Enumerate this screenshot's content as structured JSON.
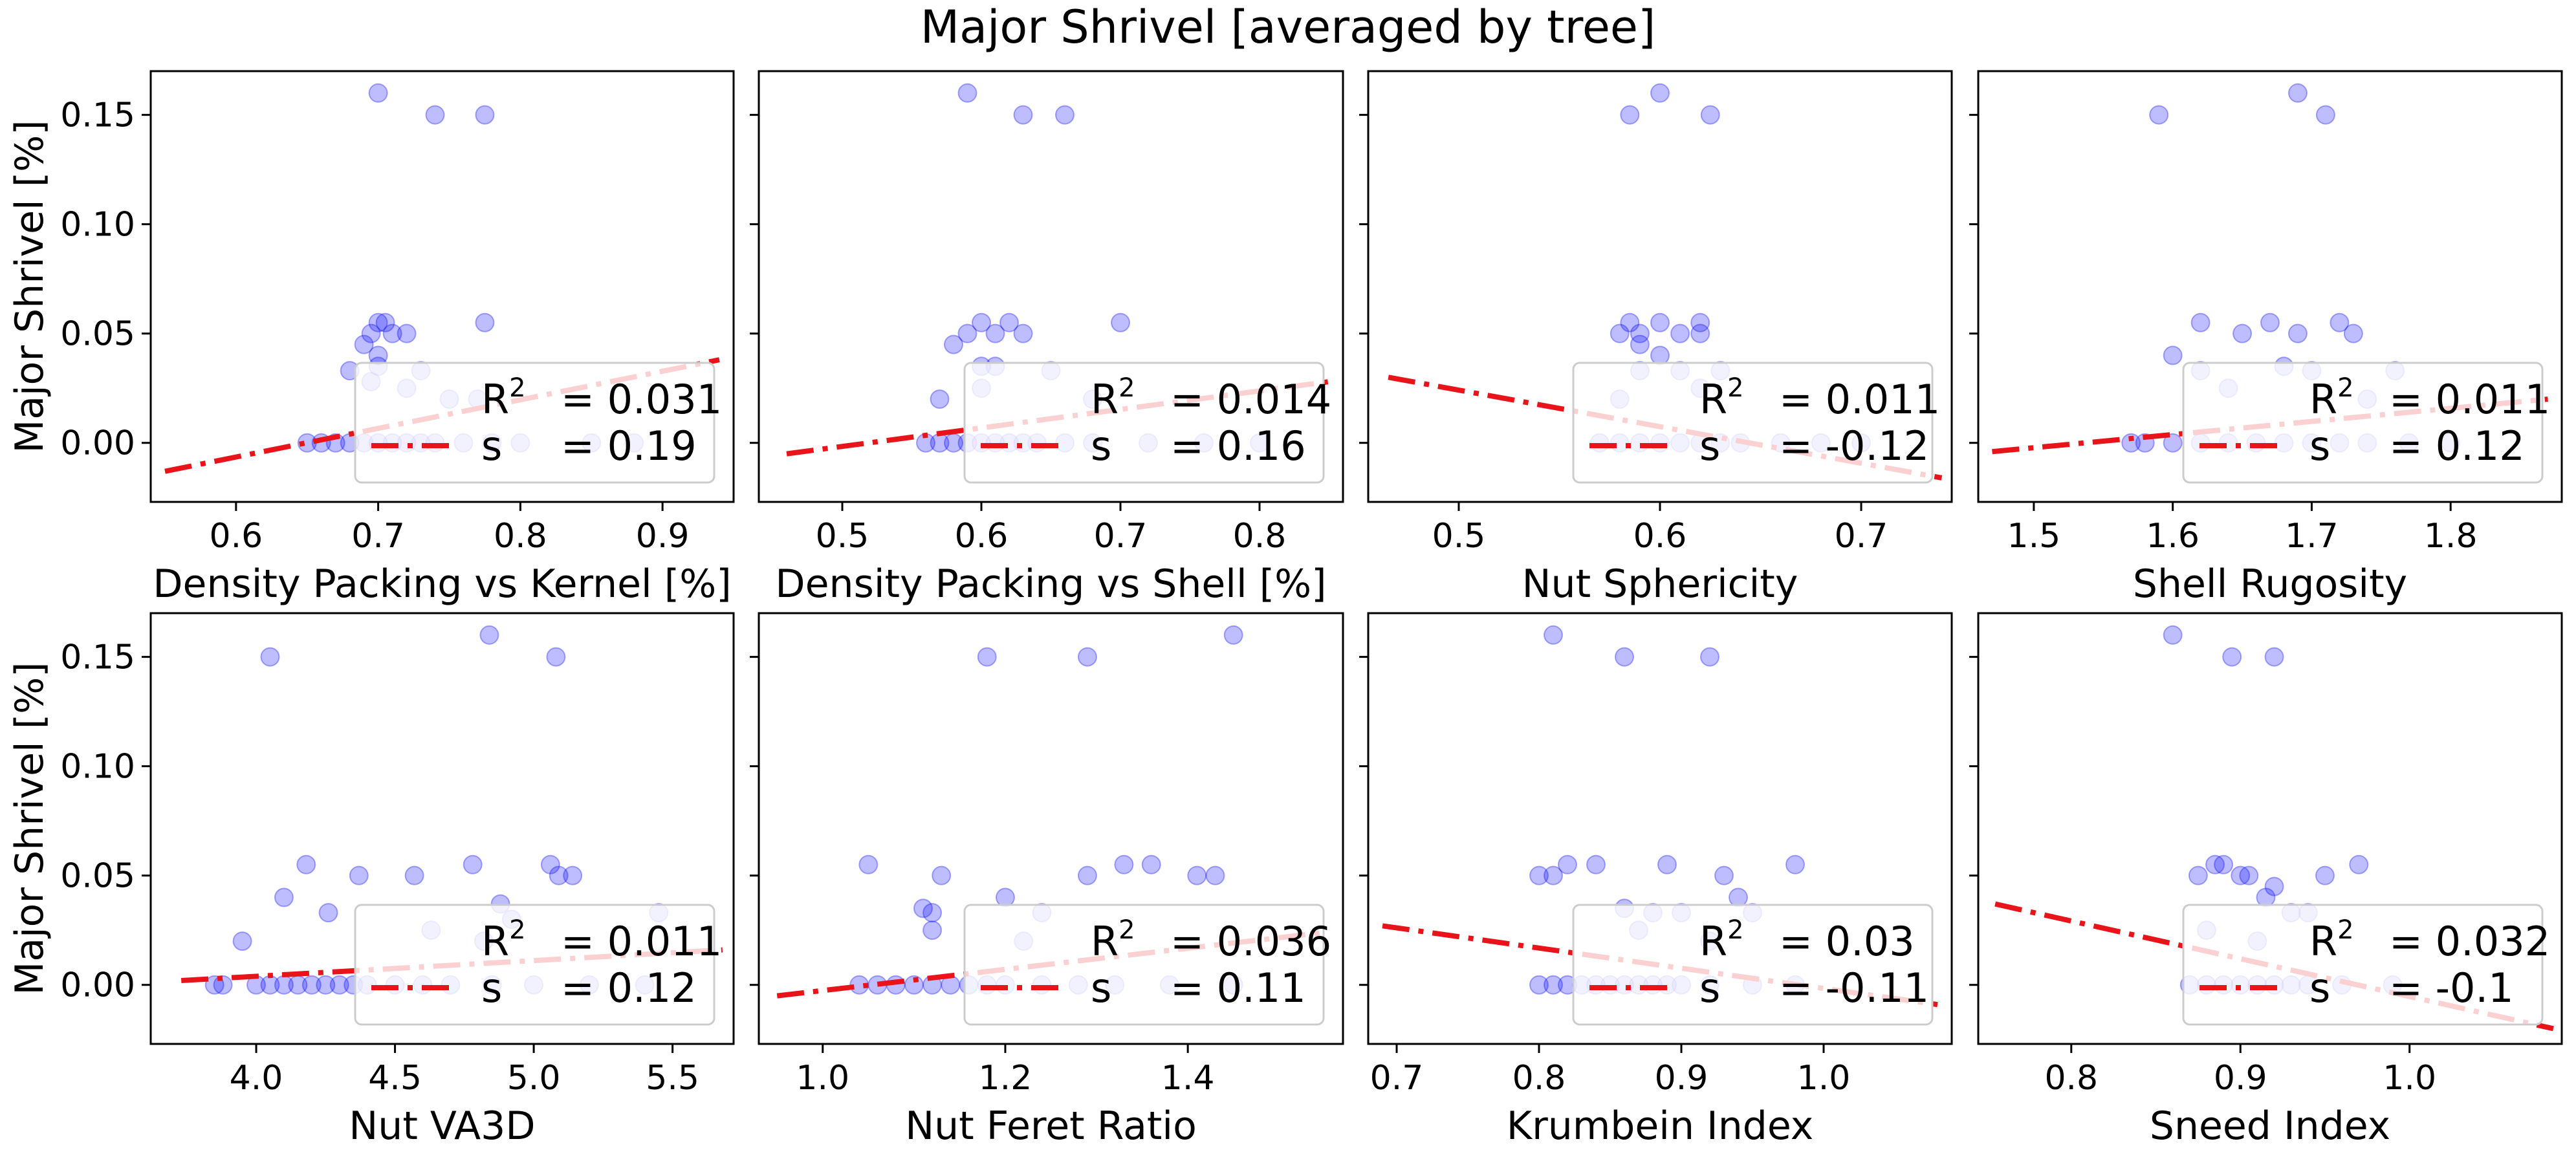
{
  "title": "Major Shrivel [averaged by tree]",
  "colors": {
    "points": "#0000ff",
    "fit_line": "#e8141a",
    "legend_border": "#cccccc"
  },
  "chart_data": [
    {
      "type": "scatter",
      "xlabel": "Density Packing vs Kernel [%]",
      "ylabel": "Major Shrivel [%]",
      "xlim": [
        0.54,
        0.95
      ],
      "ylim": [
        -0.027,
        0.17
      ],
      "xticks": [
        "0.6",
        "0.7",
        "0.8",
        "0.9"
      ],
      "yticks": [
        "0.00",
        "0.05",
        "0.10",
        "0.15"
      ],
      "fit": {
        "x": [
          0.55,
          0.94
        ],
        "y": [
          -0.013,
          0.038
        ]
      },
      "legend": {
        "r2_label": "R",
        "r2_value": "= 0.031",
        "s_label": "s",
        "s_value": "= 0.19"
      },
      "points": [
        [
          0.7,
          0.16
        ],
        [
          0.74,
          0.15
        ],
        [
          0.775,
          0.15
        ],
        [
          0.7,
          0.055
        ],
        [
          0.705,
          0.055
        ],
        [
          0.775,
          0.055
        ],
        [
          0.695,
          0.05
        ],
        [
          0.71,
          0.05
        ],
        [
          0.72,
          0.05
        ],
        [
          0.69,
          0.045
        ],
        [
          0.7,
          0.04
        ],
        [
          0.7,
          0.035
        ],
        [
          0.68,
          0.033
        ],
        [
          0.73,
          0.033
        ],
        [
          0.695,
          0.028
        ],
        [
          0.72,
          0.025
        ],
        [
          0.75,
          0.02
        ],
        [
          0.77,
          0.02
        ],
        [
          0.65,
          0.0
        ],
        [
          0.66,
          0.0
        ],
        [
          0.67,
          0.0
        ],
        [
          0.68,
          0.0
        ],
        [
          0.69,
          0.0
        ],
        [
          0.7,
          0.0
        ],
        [
          0.71,
          0.0
        ],
        [
          0.72,
          0.0
        ],
        [
          0.73,
          0.0
        ],
        [
          0.74,
          0.0
        ],
        [
          0.76,
          0.0
        ],
        [
          0.78,
          0.0
        ],
        [
          0.8,
          0.0
        ],
        [
          0.85,
          0.0
        ],
        [
          0.88,
          0.0
        ]
      ]
    },
    {
      "type": "scatter",
      "xlabel": "Density Packing vs Shell [%]",
      "ylabel": "",
      "xlim": [
        0.44,
        0.86
      ],
      "ylim": [
        -0.027,
        0.17
      ],
      "xticks": [
        "0.5",
        "0.6",
        "0.7",
        "0.8"
      ],
      "yticks": [],
      "fit": {
        "x": [
          0.46,
          0.85
        ],
        "y": [
          -0.005,
          0.028
        ]
      },
      "legend": {
        "r2_label": "R",
        "r2_value": "= 0.014",
        "s_label": "s",
        "s_value": "= 0.16"
      },
      "points": [
        [
          0.59,
          0.16
        ],
        [
          0.63,
          0.15
        ],
        [
          0.66,
          0.15
        ],
        [
          0.6,
          0.055
        ],
        [
          0.62,
          0.055
        ],
        [
          0.7,
          0.055
        ],
        [
          0.59,
          0.05
        ],
        [
          0.61,
          0.05
        ],
        [
          0.63,
          0.05
        ],
        [
          0.58,
          0.045
        ],
        [
          0.6,
          0.035
        ],
        [
          0.61,
          0.035
        ],
        [
          0.65,
          0.033
        ],
        [
          0.57,
          0.02
        ],
        [
          0.6,
          0.025
        ],
        [
          0.68,
          0.02
        ],
        [
          0.56,
          0.0
        ],
        [
          0.57,
          0.0
        ],
        [
          0.58,
          0.0
        ],
        [
          0.59,
          0.0
        ],
        [
          0.6,
          0.0
        ],
        [
          0.61,
          0.0
        ],
        [
          0.62,
          0.0
        ],
        [
          0.63,
          0.0
        ],
        [
          0.64,
          0.0
        ],
        [
          0.66,
          0.0
        ],
        [
          0.68,
          0.0
        ],
        [
          0.72,
          0.0
        ],
        [
          0.76,
          0.0
        ],
        [
          0.8,
          0.0
        ]
      ]
    },
    {
      "type": "scatter",
      "xlabel": "Nut Sphericity",
      "ylabel": "",
      "xlim": [
        0.455,
        0.745
      ],
      "ylim": [
        -0.027,
        0.17
      ],
      "xticks": [
        "0.5",
        "0.6",
        "0.7"
      ],
      "yticks": [],
      "fit": {
        "x": [
          0.465,
          0.74
        ],
        "y": [
          0.03,
          -0.016
        ]
      },
      "legend": {
        "r2_label": "R",
        "r2_value": "= 0.011",
        "s_label": "s",
        "s_value": "= -0.12"
      },
      "points": [
        [
          0.6,
          0.16
        ],
        [
          0.585,
          0.15
        ],
        [
          0.625,
          0.15
        ],
        [
          0.585,
          0.055
        ],
        [
          0.6,
          0.055
        ],
        [
          0.62,
          0.055
        ],
        [
          0.58,
          0.05
        ],
        [
          0.59,
          0.05
        ],
        [
          0.61,
          0.05
        ],
        [
          0.62,
          0.05
        ],
        [
          0.59,
          0.045
        ],
        [
          0.6,
          0.04
        ],
        [
          0.59,
          0.033
        ],
        [
          0.61,
          0.033
        ],
        [
          0.63,
          0.033
        ],
        [
          0.58,
          0.02
        ],
        [
          0.62,
          0.025
        ],
        [
          0.57,
          0.0
        ],
        [
          0.58,
          0.0
        ],
        [
          0.59,
          0.0
        ],
        [
          0.6,
          0.0
        ],
        [
          0.61,
          0.0
        ],
        [
          0.62,
          0.0
        ],
        [
          0.63,
          0.0
        ],
        [
          0.64,
          0.0
        ],
        [
          0.66,
          0.0
        ],
        [
          0.68,
          0.0
        ],
        [
          0.7,
          0.0
        ]
      ]
    },
    {
      "type": "scatter",
      "xlabel": "Shell Rugosity",
      "ylabel": "",
      "xlim": [
        1.46,
        1.88
      ],
      "ylim": [
        -0.027,
        0.17
      ],
      "xticks": [
        "1.5",
        "1.6",
        "1.7",
        "1.8"
      ],
      "yticks": [],
      "fit": {
        "x": [
          1.47,
          1.87
        ],
        "y": [
          -0.004,
          0.02
        ]
      },
      "legend": {
        "r2_label": "R",
        "r2_value": "= 0.011",
        "s_label": "s",
        "s_value": "= 0.12"
      },
      "points": [
        [
          1.69,
          0.16
        ],
        [
          1.59,
          0.15
        ],
        [
          1.71,
          0.15
        ],
        [
          1.62,
          0.055
        ],
        [
          1.67,
          0.055
        ],
        [
          1.72,
          0.055
        ],
        [
          1.65,
          0.05
        ],
        [
          1.69,
          0.05
        ],
        [
          1.73,
          0.05
        ],
        [
          1.6,
          0.04
        ],
        [
          1.68,
          0.035
        ],
        [
          1.62,
          0.033
        ],
        [
          1.7,
          0.033
        ],
        [
          1.76,
          0.033
        ],
        [
          1.64,
          0.025
        ],
        [
          1.74,
          0.02
        ],
        [
          1.57,
          0.0
        ],
        [
          1.58,
          0.0
        ],
        [
          1.6,
          0.0
        ],
        [
          1.62,
          0.0
        ],
        [
          1.64,
          0.0
        ],
        [
          1.66,
          0.0
        ],
        [
          1.68,
          0.0
        ],
        [
          1.7,
          0.0
        ],
        [
          1.72,
          0.0
        ],
        [
          1.74,
          0.0
        ],
        [
          1.77,
          0.0
        ],
        [
          1.8,
          0.0
        ]
      ]
    },
    {
      "type": "scatter",
      "xlabel": "Nut VA3D",
      "ylabel": "Major Shrivel [%]",
      "xlim": [
        3.62,
        5.72
      ],
      "ylim": [
        -0.027,
        0.17
      ],
      "xticks": [
        "4.0",
        "4.5",
        "5.0",
        "5.5"
      ],
      "yticks": [
        "0.00",
        "0.05",
        "0.10",
        "0.15"
      ],
      "fit": {
        "x": [
          3.73,
          5.68
        ],
        "y": [
          0.002,
          0.016
        ]
      },
      "legend": {
        "r2_label": "R",
        "r2_value": "= 0.011",
        "s_label": "s",
        "s_value": "= 0.12"
      },
      "points": [
        [
          4.84,
          0.16
        ],
        [
          4.05,
          0.15
        ],
        [
          5.08,
          0.15
        ],
        [
          4.18,
          0.055
        ],
        [
          4.78,
          0.055
        ],
        [
          5.06,
          0.055
        ],
        [
          4.37,
          0.05
        ],
        [
          4.57,
          0.05
        ],
        [
          5.09,
          0.05
        ],
        [
          5.14,
          0.05
        ],
        [
          4.1,
          0.04
        ],
        [
          4.88,
          0.037
        ],
        [
          4.26,
          0.033
        ],
        [
          4.92,
          0.03
        ],
        [
          5.45,
          0.033
        ],
        [
          4.63,
          0.025
        ],
        [
          3.95,
          0.02
        ],
        [
          4.82,
          0.02
        ],
        [
          3.85,
          0.0
        ],
        [
          3.88,
          0.0
        ],
        [
          4.0,
          0.0
        ],
        [
          4.05,
          0.0
        ],
        [
          4.1,
          0.0
        ],
        [
          4.15,
          0.0
        ],
        [
          4.2,
          0.0
        ],
        [
          4.25,
          0.0
        ],
        [
          4.3,
          0.0
        ],
        [
          4.35,
          0.0
        ],
        [
          4.4,
          0.0
        ],
        [
          4.5,
          0.0
        ],
        [
          4.6,
          0.0
        ],
        [
          4.7,
          0.0
        ],
        [
          4.85,
          0.0
        ],
        [
          5.0,
          0.0
        ],
        [
          5.2,
          0.0
        ],
        [
          5.4,
          0.0
        ]
      ]
    },
    {
      "type": "scatter",
      "xlabel": "Nut Feret Ratio",
      "ylabel": "",
      "xlim": [
        0.93,
        1.57
      ],
      "ylim": [
        -0.027,
        0.17
      ],
      "xticks": [
        "1.0",
        "1.2",
        "1.4"
      ],
      "yticks": [],
      "fit": {
        "x": [
          0.95,
          1.55
        ],
        "y": [
          -0.005,
          0.024
        ]
      },
      "legend": {
        "r2_label": "R",
        "r2_value": "= 0.036",
        "s_label": "s",
        "s_value": "= 0.11"
      },
      "points": [
        [
          1.45,
          0.16
        ],
        [
          1.18,
          0.15
        ],
        [
          1.29,
          0.15
        ],
        [
          1.05,
          0.055
        ],
        [
          1.33,
          0.055
        ],
        [
          1.36,
          0.055
        ],
        [
          1.13,
          0.05
        ],
        [
          1.29,
          0.05
        ],
        [
          1.41,
          0.05
        ],
        [
          1.43,
          0.05
        ],
        [
          1.2,
          0.04
        ],
        [
          1.11,
          0.035
        ],
        [
          1.12,
          0.033
        ],
        [
          1.24,
          0.033
        ],
        [
          1.12,
          0.025
        ],
        [
          1.22,
          0.02
        ],
        [
          1.04,
          0.0
        ],
        [
          1.06,
          0.0
        ],
        [
          1.08,
          0.0
        ],
        [
          1.1,
          0.0
        ],
        [
          1.12,
          0.0
        ],
        [
          1.14,
          0.0
        ],
        [
          1.16,
          0.0
        ],
        [
          1.18,
          0.0
        ],
        [
          1.2,
          0.0
        ],
        [
          1.24,
          0.0
        ],
        [
          1.28,
          0.0
        ],
        [
          1.32,
          0.0
        ],
        [
          1.38,
          0.0
        ],
        [
          1.45,
          0.0
        ]
      ]
    },
    {
      "type": "scatter",
      "xlabel": "Krumbein Index",
      "ylabel": "",
      "xlim": [
        0.68,
        1.09
      ],
      "ylim": [
        -0.027,
        0.17
      ],
      "xticks": [
        "0.7",
        "0.8",
        "0.9",
        "1.0"
      ],
      "yticks": [],
      "fit": {
        "x": [
          0.69,
          1.08
        ],
        "y": [
          0.027,
          -0.009
        ]
      },
      "legend": {
        "r2_label": "R",
        "r2_value": "= 0.03",
        "s_label": "s",
        "s_value": "= -0.11"
      },
      "points": [
        [
          0.81,
          0.16
        ],
        [
          0.86,
          0.15
        ],
        [
          0.92,
          0.15
        ],
        [
          0.82,
          0.055
        ],
        [
          0.84,
          0.055
        ],
        [
          0.89,
          0.055
        ],
        [
          0.98,
          0.055
        ],
        [
          0.8,
          0.05
        ],
        [
          0.81,
          0.05
        ],
        [
          0.93,
          0.05
        ],
        [
          0.94,
          0.04
        ],
        [
          0.86,
          0.035
        ],
        [
          0.88,
          0.033
        ],
        [
          0.9,
          0.033
        ],
        [
          0.95,
          0.033
        ],
        [
          0.87,
          0.025
        ],
        [
          0.92,
          0.02
        ],
        [
          0.8,
          0.0
        ],
        [
          0.81,
          0.0
        ],
        [
          0.82,
          0.0
        ],
        [
          0.83,
          0.0
        ],
        [
          0.84,
          0.0
        ],
        [
          0.85,
          0.0
        ],
        [
          0.86,
          0.0
        ],
        [
          0.87,
          0.0
        ],
        [
          0.88,
          0.0
        ],
        [
          0.89,
          0.0
        ],
        [
          0.9,
          0.0
        ],
        [
          0.92,
          0.0
        ],
        [
          0.95,
          0.0
        ],
        [
          0.98,
          0.0
        ]
      ]
    },
    {
      "type": "scatter",
      "xlabel": "Sneed Index",
      "ylabel": "",
      "xlim": [
        0.745,
        1.09
      ],
      "ylim": [
        -0.027,
        0.17
      ],
      "xticks": [
        "0.8",
        "0.9",
        "1.0"
      ],
      "yticks": [],
      "fit": {
        "x": [
          0.755,
          1.085
        ],
        "y": [
          0.037,
          -0.02
        ]
      },
      "legend": {
        "r2_label": "R",
        "r2_value": "= 0.032",
        "s_label": "s",
        "s_value": "= -0.1"
      },
      "points": [
        [
          0.86,
          0.16
        ],
        [
          0.895,
          0.15
        ],
        [
          0.92,
          0.15
        ],
        [
          0.885,
          0.055
        ],
        [
          0.89,
          0.055
        ],
        [
          0.97,
          0.055
        ],
        [
          0.875,
          0.05
        ],
        [
          0.9,
          0.05
        ],
        [
          0.905,
          0.05
        ],
        [
          0.95,
          0.05
        ],
        [
          0.92,
          0.045
        ],
        [
          0.915,
          0.04
        ],
        [
          0.93,
          0.033
        ],
        [
          0.94,
          0.033
        ],
        [
          0.88,
          0.025
        ],
        [
          0.91,
          0.02
        ],
        [
          0.87,
          0.0
        ],
        [
          0.88,
          0.0
        ],
        [
          0.89,
          0.0
        ],
        [
          0.9,
          0.0
        ],
        [
          0.91,
          0.0
        ],
        [
          0.92,
          0.0
        ],
        [
          0.93,
          0.0
        ],
        [
          0.94,
          0.0
        ],
        [
          0.96,
          0.0
        ],
        [
          0.99,
          0.0
        ]
      ]
    }
  ]
}
